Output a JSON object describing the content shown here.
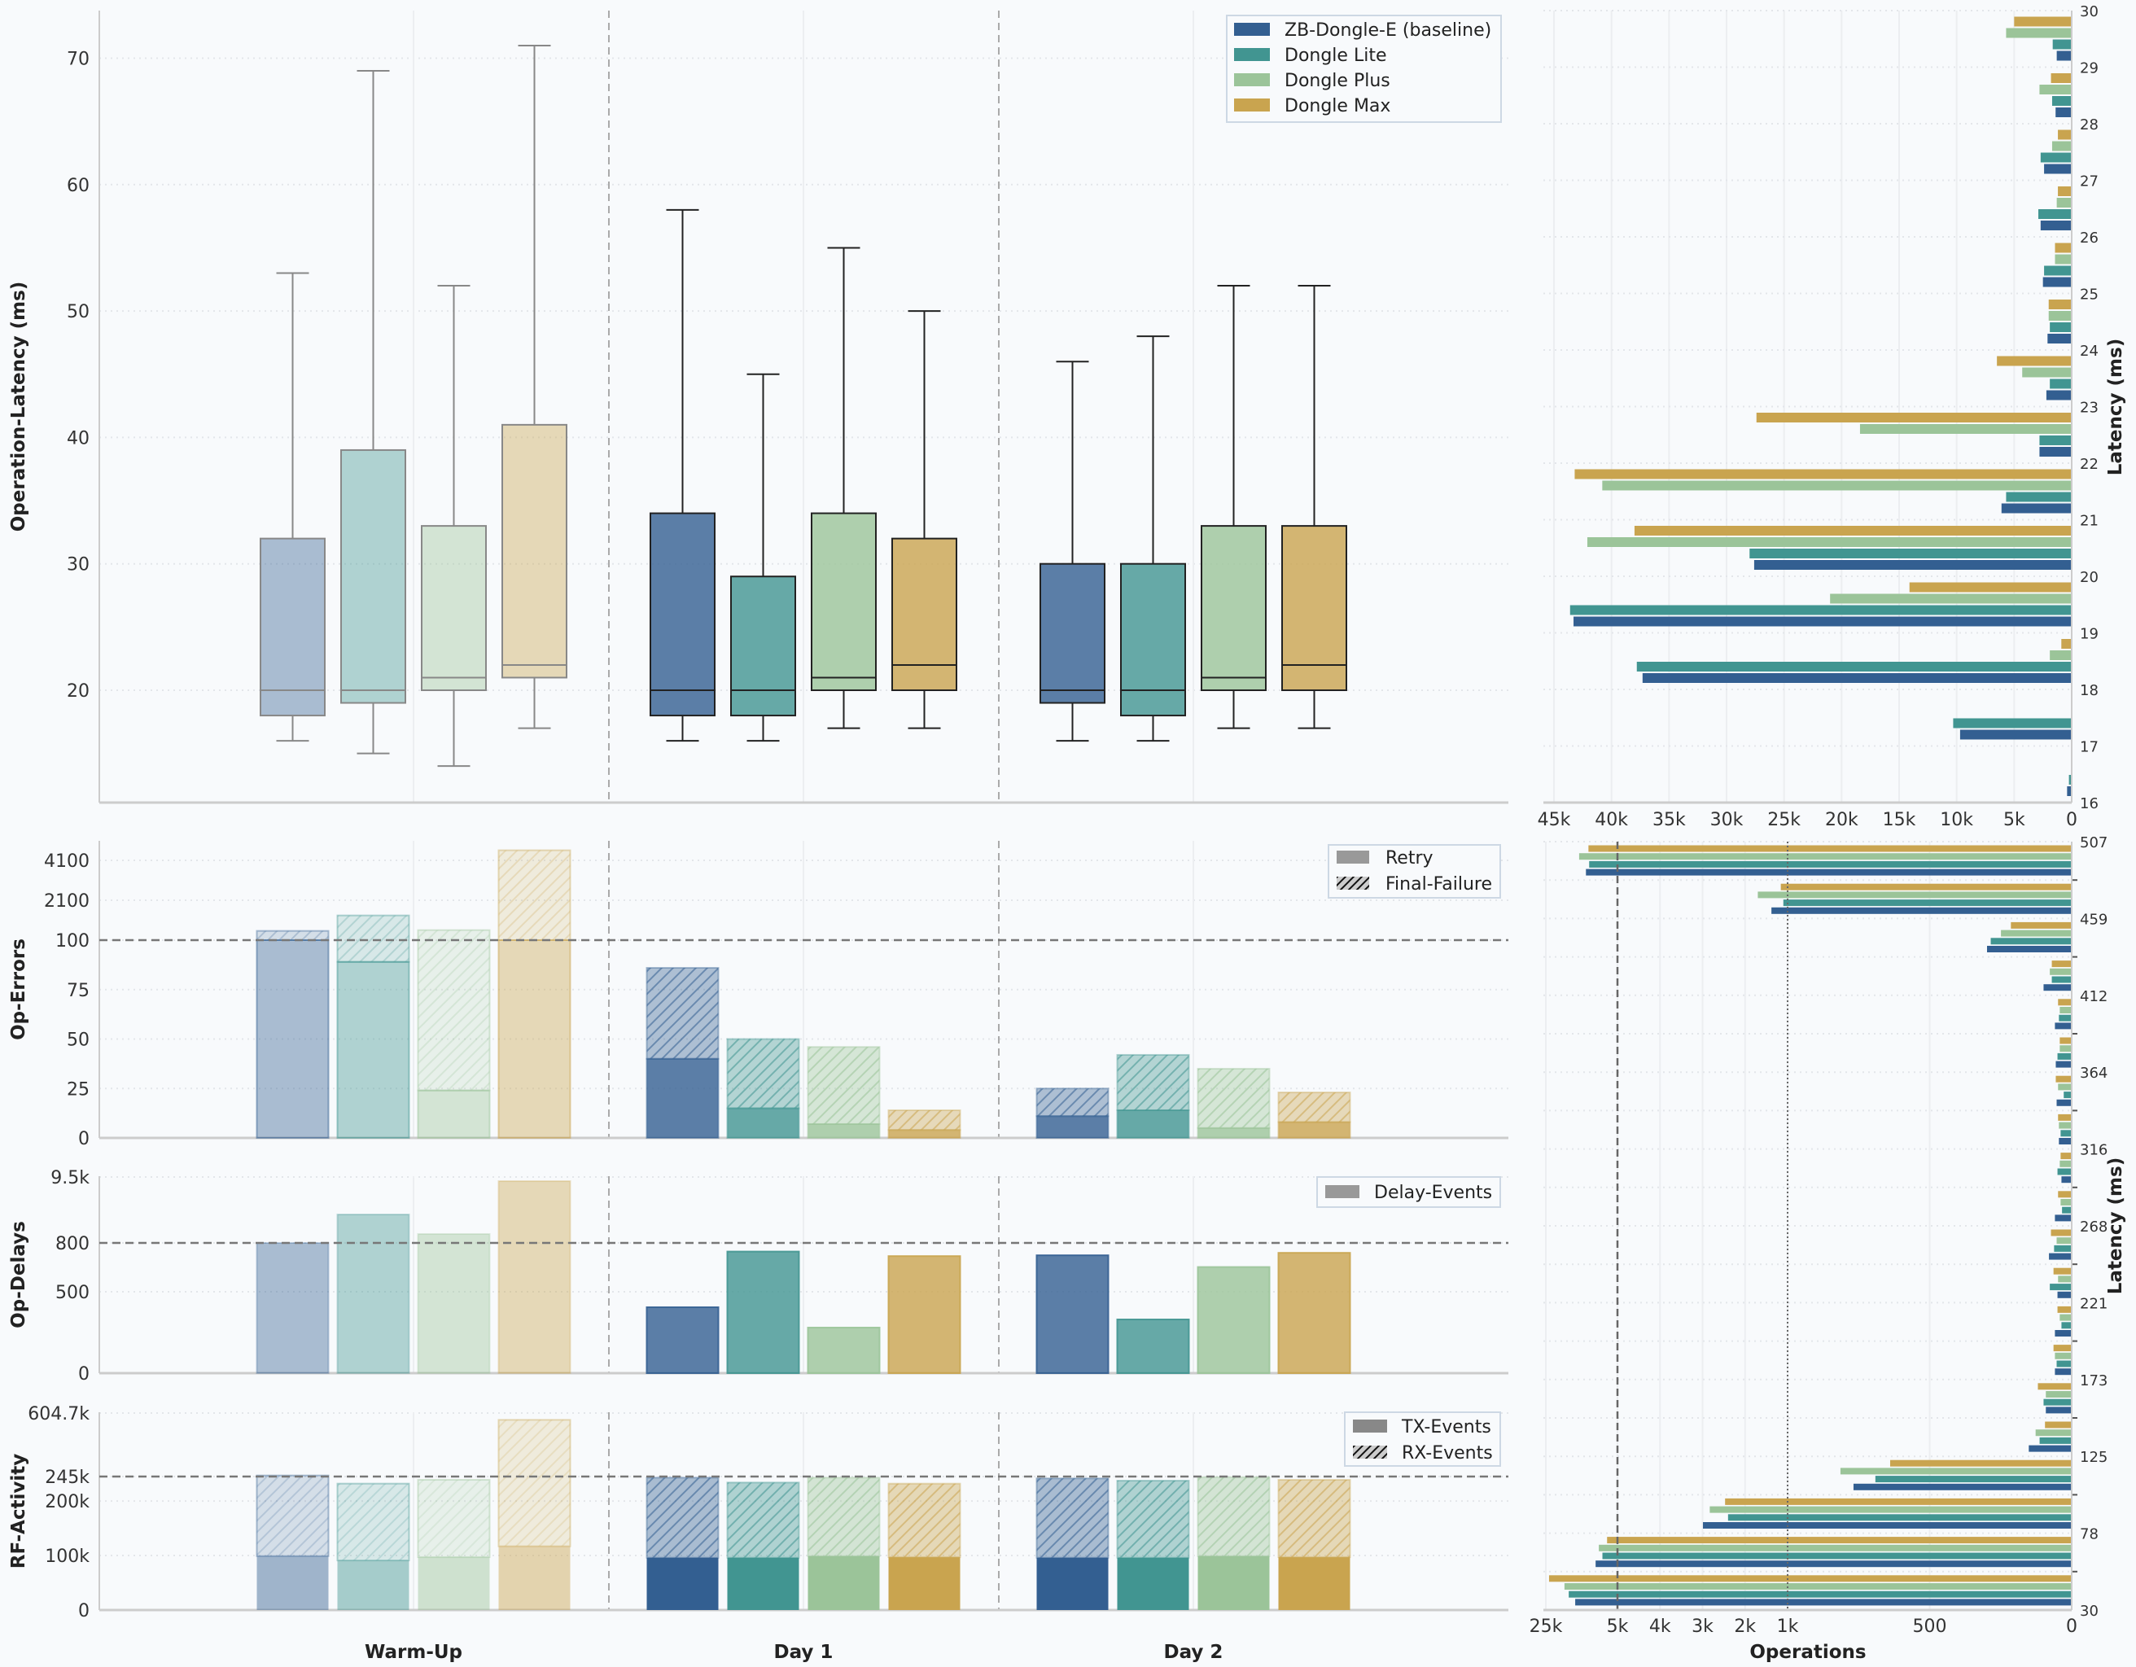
{
  "devices": [
    {
      "name": "ZB-Dongle-E (baseline)",
      "color": "#335f91"
    },
    {
      "name": "Dongle Lite",
      "color": "#419591"
    },
    {
      "name": "Dongle Plus",
      "color": "#9bc499"
    },
    {
      "name": "Dongle Max",
      "color": "#c9a44f"
    }
  ],
  "chart_data": [
    {
      "type": "box",
      "ylabel": "Operation-Latency (ms)",
      "groups": [
        "Warm-Up",
        "Day 1",
        "Day 2"
      ],
      "ylim": [
        11.1,
        73.8
      ],
      "yticks": [
        20,
        30,
        40,
        50,
        60,
        70
      ],
      "ytick_labels": [
        "20",
        "30",
        "40",
        "50",
        "60",
        "70"
      ],
      "grid": true,
      "legend_position": "top-right",
      "series": [
        {
          "name": "ZB-Dongle-E (baseline)",
          "boxes": [
            {
              "whislo": 16,
              "q1": 18,
              "med": 20,
              "q3": 32,
              "whishi": 53
            },
            {
              "whislo": 16,
              "q1": 18,
              "med": 20,
              "q3": 34,
              "whishi": 58
            },
            {
              "whislo": 16,
              "q1": 19,
              "med": 20,
              "q3": 30,
              "whishi": 46
            }
          ]
        },
        {
          "name": "Dongle Lite",
          "boxes": [
            {
              "whislo": 15,
              "q1": 19,
              "med": 20,
              "q3": 39,
              "whishi": 69
            },
            {
              "whislo": 16,
              "q1": 18,
              "med": 20,
              "q3": 29,
              "whishi": 45
            },
            {
              "whislo": 16,
              "q1": 18,
              "med": 20,
              "q3": 30,
              "whishi": 48
            }
          ]
        },
        {
          "name": "Dongle Plus",
          "boxes": [
            {
              "whislo": 14,
              "q1": 20,
              "med": 21,
              "q3": 33,
              "whishi": 52
            },
            {
              "whislo": 17,
              "q1": 20,
              "med": 21,
              "q3": 34,
              "whishi": 55
            },
            {
              "whislo": 17,
              "q1": 20,
              "med": 21,
              "q3": 33,
              "whishi": 52
            }
          ]
        },
        {
          "name": "Dongle Max",
          "boxes": [
            {
              "whislo": 17,
              "q1": 21,
              "med": 22,
              "q3": 41,
              "whishi": 71
            },
            {
              "whislo": 17,
              "q1": 20,
              "med": 22,
              "q3": 32,
              "whishi": 50
            },
            {
              "whislo": 17,
              "q1": 20,
              "med": 22,
              "q3": 33,
              "whishi": 52
            }
          ]
        }
      ]
    },
    {
      "type": "bar",
      "stacked": true,
      "ylabel": "Op-Errors",
      "yscale": "broken (linear to 100, compressed above)",
      "yticks": [
        0,
        25,
        50,
        75,
        100,
        2100,
        4100
      ],
      "ytick_labels": [
        "0",
        "25",
        "50",
        "75",
        "100",
        "2100",
        "4100"
      ],
      "reference_line": 100,
      "legend": [
        "Retry",
        "Final-Failure"
      ],
      "legend_position": "top-right",
      "series": [
        {
          "name": "ZB-Dongle-E (baseline)",
          "retry": [
            100,
            40,
            11
          ],
          "final_failure": [
            463,
            46,
            14
          ]
        },
        {
          "name": "Dongle Lite",
          "retry": [
            89,
            15,
            14
          ],
          "final_failure": [
            1249,
            35,
            28
          ]
        },
        {
          "name": "Dongle Plus",
          "retry": [
            24,
            7,
            5
          ],
          "final_failure": [
            579,
            39,
            30
          ]
        },
        {
          "name": "Dongle Max",
          "retry": [
            100,
            4,
            8
          ],
          "final_failure": [
            4485,
            10,
            15
          ]
        }
      ]
    },
    {
      "type": "bar",
      "ylabel": "Op-Delays",
      "yscale": "broken (linear to 800, compressed above)",
      "yticks": [
        0,
        500,
        800,
        9500
      ],
      "ytick_labels": [
        "0",
        "500",
        "800",
        "9.5k"
      ],
      "reference_line": 800,
      "legend": [
        "Delay-Events"
      ],
      "legend_position": "top-right",
      "series": [
        {
          "name": "ZB-Dongle-E (baseline)",
          "values": [
            800,
            405,
            724
          ]
        },
        {
          "name": "Dongle Lite",
          "values": [
            4560,
            747,
            330
          ]
        },
        {
          "name": "Dongle Plus",
          "values": [
            1980,
            280,
            652
          ]
        },
        {
          "name": "Dongle Max",
          "values": [
            8960,
            719,
            739
          ]
        }
      ]
    },
    {
      "type": "bar",
      "stacked": true,
      "ylabel": "RF-Activity",
      "yscale": "broken (linear to 245k, compressed above)",
      "yticks": [
        0,
        100000,
        200000,
        245000,
        604700
      ],
      "ytick_labels": [
        "0",
        "100k",
        "200k",
        "245k",
        "604.7k"
      ],
      "reference_line": 245000,
      "legend": [
        "TX-Events",
        "RX-Events"
      ],
      "legend_position": "top-right",
      "series": [
        {
          "name": "ZB-Dongle-E (baseline)",
          "tx": [
            99000,
            96000,
            96000
          ],
          "rx": [
            152000,
            147000,
            145600
          ]
        },
        {
          "name": "Dongle Lite",
          "tx": [
            91000,
            96000,
            96000
          ],
          "rx": [
            141000,
            138000,
            141500
          ]
        },
        {
          "name": "Dongle Plus",
          "tx": [
            97000,
            99000,
            99000
          ],
          "rx": [
            142000,
            144000,
            145000
          ]
        },
        {
          "name": "Dongle Max",
          "tx": [
            117000,
            97000,
            97000
          ],
          "rx": [
            449000,
            135000,
            142000
          ]
        }
      ]
    },
    {
      "type": "bar",
      "orientation": "horizontal",
      "ylabel": "Latency (ms)",
      "bins_start": [
        16,
        17,
        18,
        19,
        20,
        21,
        22,
        23,
        24,
        25,
        26,
        27,
        28,
        29
      ],
      "ylim": [
        16,
        30
      ],
      "yticks": [
        16,
        17,
        18,
        19,
        20,
        21,
        22,
        23,
        24,
        25,
        26,
        27,
        28,
        29,
        30
      ],
      "ytick_labels": [
        "16",
        "17",
        "18",
        "19",
        "20",
        "21",
        "22",
        "23",
        "24",
        "25",
        "26",
        "27",
        "28",
        "29",
        "30"
      ],
      "xlim": [
        45000,
        0
      ],
      "xticks": [
        45000,
        40000,
        35000,
        30000,
        25000,
        20000,
        15000,
        10000,
        5000,
        0
      ],
      "xtick_labels": [
        "45k",
        "40k",
        "35k",
        "30k",
        "25k",
        "20k",
        "15k",
        "10k",
        "5k",
        "0"
      ],
      "series": [
        {
          "name": "ZB-Dongle-E (baseline)",
          "values": [
            400,
            9700,
            37300,
            43300,
            27600,
            6100,
            2800,
            2200,
            2100,
            2500,
            2700,
            2400,
            1400,
            1300
          ]
        },
        {
          "name": "Dongle Lite",
          "values": [
            240,
            10300,
            37800,
            43600,
            28000,
            5700,
            2800,
            1900,
            1900,
            2400,
            2900,
            2700,
            1700,
            1650
          ]
        },
        {
          "name": "Dongle Plus",
          "values": [
            0,
            0,
            1900,
            21000,
            42100,
            40800,
            18400,
            4300,
            2000,
            1450,
            1300,
            1700,
            2800,
            5700
          ]
        },
        {
          "name": "Dongle Max",
          "values": [
            0,
            0,
            900,
            14100,
            38000,
            43200,
            27400,
            6500,
            2000,
            1450,
            1200,
            1200,
            1800,
            5000
          ]
        }
      ]
    },
    {
      "type": "bar",
      "orientation": "horizontal",
      "ylabel": "Latency (ms)",
      "xlabel": "Operations",
      "ylim": [
        30,
        507
      ],
      "bin_count": 20,
      "yticks": [
        30,
        78,
        125,
        173,
        221,
        268,
        316,
        364,
        412,
        459,
        507
      ],
      "ytick_labels": [
        "30",
        "78",
        "125",
        "173",
        "221",
        "268",
        "316",
        "364",
        "412",
        "459",
        "507"
      ],
      "xscale": "broken (linear to 1k, compressed above)",
      "xticks": [
        25000,
        5000,
        4000,
        3000,
        2000,
        1000,
        500,
        0
      ],
      "xtick_labels": [
        "25k",
        "5k",
        "4k",
        "3k",
        "2k",
        "1k",
        "500",
        "0"
      ],
      "reference_lines": [
        5000,
        1000
      ],
      "series": [
        {
          "name": "ZB-Dongle-E (baseline)",
          "values": [
            16800,
            11100,
            2990,
            768,
            151,
            91,
            59,
            59,
            50,
            80,
            59,
            36,
            45,
            53,
            56,
            59,
            99,
            298,
            1380,
            13800
          ]
        },
        {
          "name": "Dongle Lite",
          "values": [
            18600,
            9200,
            2400,
            691,
            113,
            99,
            53,
            36,
            77,
            62,
            34,
            50,
            39,
            28,
            50,
            45,
            70,
            285,
            1100,
            12900
          ]
        },
        {
          "name": "Dongle Plus",
          "values": [
            19800,
            10200,
            2830,
            814,
            127,
            91,
            59,
            42,
            48,
            53,
            39,
            42,
            45,
            48,
            42,
            42,
            77,
            249,
            1700,
            15700
          ]
        },
        {
          "name": "Dongle Max",
          "values": [
            24100,
            7900,
            2470,
            639,
            94,
            119,
            64,
            50,
            64,
            73,
            48,
            39,
            48,
            56,
            42,
            48,
            70,
            214,
            1160,
            13100
          ]
        }
      ]
    }
  ]
}
